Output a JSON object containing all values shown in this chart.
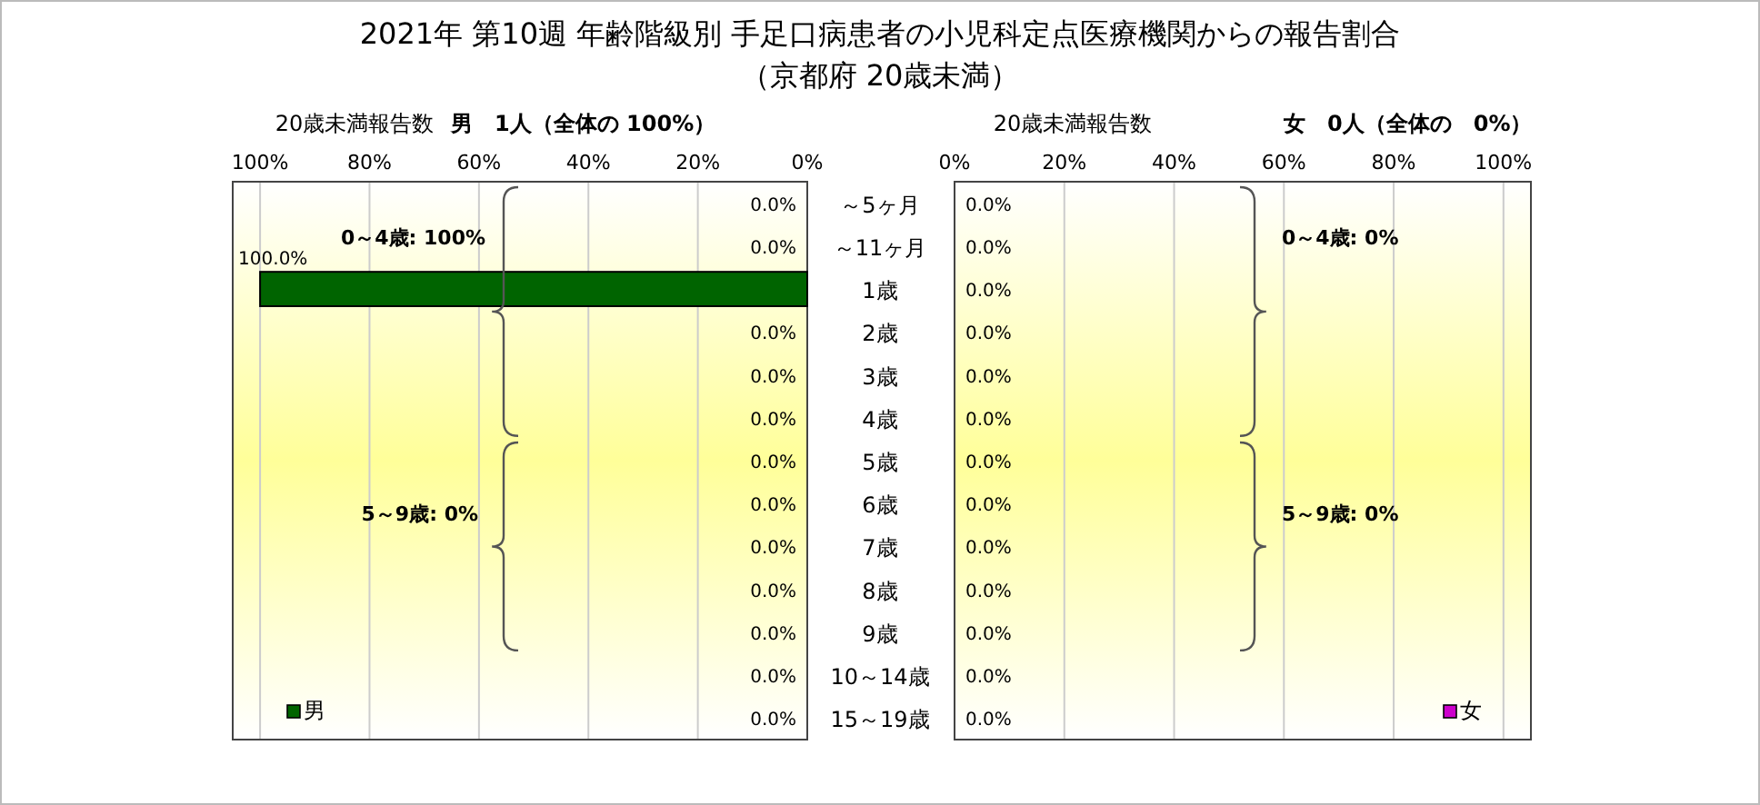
{
  "chart_data": [
    {
      "type": "bar",
      "orientation": "horizontal",
      "title": "2021年 第10週 年齢階級別 手足口病患者の小児科定点医療機関からの報告割合",
      "subtitle": "（京都府 20歳未満）",
      "categories": [
        "～5ヶ月",
        "～11ヶ月",
        "1歳",
        "2歳",
        "3歳",
        "4歳",
        "5歳",
        "6歳",
        "7歳",
        "8歳",
        "9歳",
        "10～14歳",
        "15～19歳"
      ],
      "series": [
        {
          "name": "男",
          "color": "#006400",
          "values": [
            0,
            0,
            100,
            0,
            0,
            0,
            0,
            0,
            0,
            0,
            0,
            0,
            0
          ],
          "value_labels": [
            "0.0%",
            "0.0%",
            "100.0%",
            "0.0%",
            "0.0%",
            "0.0%",
            "0.0%",
            "0.0%",
            "0.0%",
            "0.0%",
            "0.0%",
            "0.0%",
            "0.0%"
          ]
        }
      ],
      "xlim": [
        105,
        0
      ],
      "xticks": [
        {
          "value": 100,
          "label": "100%"
        },
        {
          "value": 80,
          "label": "80%"
        },
        {
          "value": 60,
          "label": "60%"
        },
        {
          "value": 40,
          "label": "40%"
        },
        {
          "value": 20,
          "label": "20%"
        },
        {
          "value": 0,
          "label": "0%"
        }
      ],
      "grid": "x",
      "legend": "bottom left",
      "annotations": [
        "20歳未満報告数",
        "男　1人（全体の 100%）",
        "0～4歳: 100%",
        "5～9歳: 0%"
      ]
    },
    {
      "type": "bar",
      "orientation": "horizontal",
      "series": [
        {
          "name": "女",
          "color": "#cc00cc",
          "values": [
            0,
            0,
            0,
            0,
            0,
            0,
            0,
            0,
            0,
            0,
            0,
            0,
            0
          ],
          "value_labels": [
            "0.0%",
            "0.0%",
            "0.0%",
            "0.0%",
            "0.0%",
            "0.0%",
            "0.0%",
            "0.0%",
            "0.0%",
            "0.0%",
            "0.0%",
            "0.0%",
            "0.0%"
          ]
        }
      ],
      "xlim": [
        0,
        105
      ],
      "xticks": [
        {
          "value": 0,
          "label": "0%"
        },
        {
          "value": 20,
          "label": "20%"
        },
        {
          "value": 40,
          "label": "40%"
        },
        {
          "value": 60,
          "label": "60%"
        },
        {
          "value": 80,
          "label": "80%"
        },
        {
          "value": 100,
          "label": "100%"
        }
      ],
      "grid": "x",
      "legend": "bottom right",
      "annotations": [
        "20歳未満報告数",
        "女　0人（全体の　0%）",
        "0～4歳: 0%",
        "5～9歳: 0%"
      ]
    }
  ]
}
